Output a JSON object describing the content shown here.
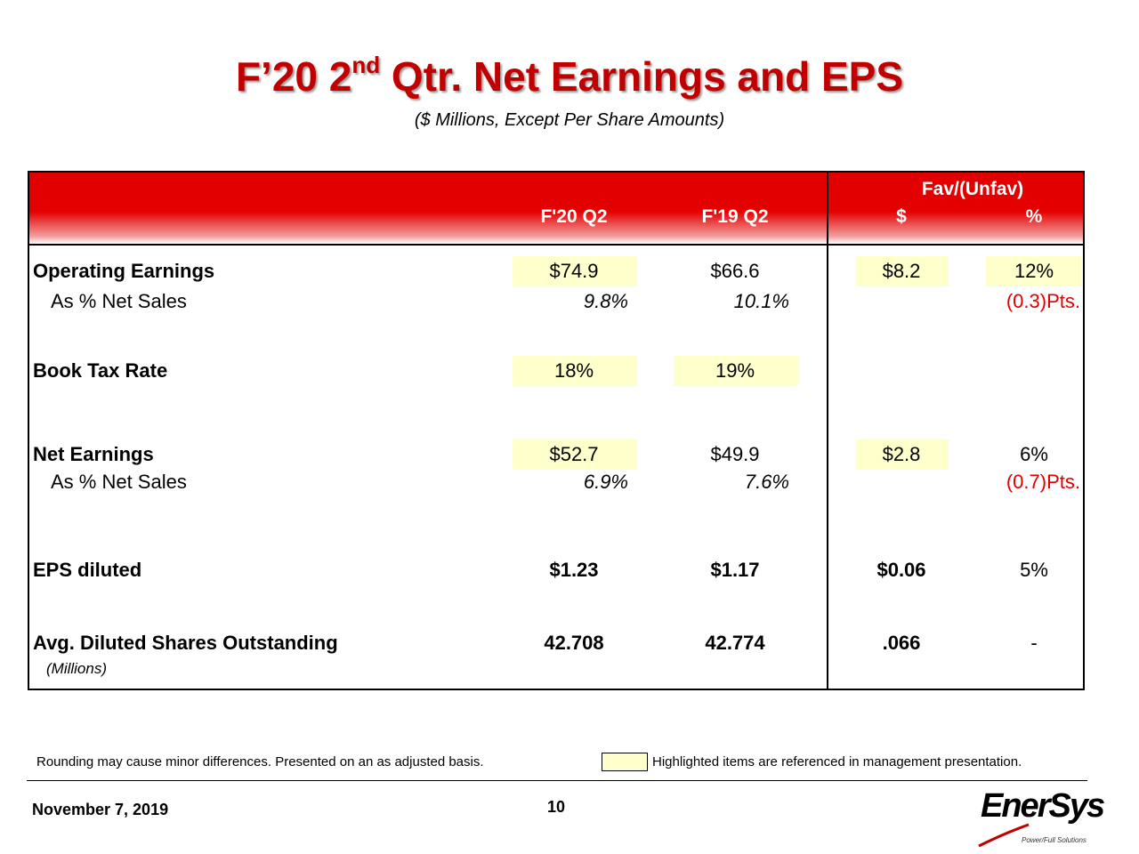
{
  "header": {
    "title_parts": [
      "F’20 2",
      "nd",
      " Qtr. Net Earnings and EPS"
    ],
    "subtitle": "($ Millions, Except Per Share Amounts)"
  },
  "table": {
    "group_header": "Fav/(Unfav)",
    "columns": [
      "F'20 Q2",
      "F'19 Q2",
      "$",
      "%"
    ],
    "rows": [
      {
        "label": "Operating Earnings",
        "cells": [
          "$74.9",
          "$66.6",
          "$8.2",
          "12%"
        ],
        "highlight": [
          true,
          false,
          true,
          true
        ]
      },
      {
        "label": "As % Net Sales",
        "cells": [
          "9.8%",
          "10.1%",
          null,
          "(0.3)Pts."
        ],
        "highlight": [
          false,
          false,
          false,
          false
        ]
      },
      {
        "label": "Book Tax Rate",
        "cells": [
          "18%",
          "19%",
          null,
          null
        ],
        "highlight": [
          true,
          true,
          false,
          false
        ]
      },
      {
        "label": "Net Earnings",
        "cells": [
          "$52.7",
          "$49.9",
          "$2.8",
          "6%"
        ],
        "highlight": [
          true,
          false,
          true,
          false
        ]
      },
      {
        "label": "As % Net Sales",
        "cells": [
          "6.9%",
          "7.6%",
          null,
          "(0.7)Pts."
        ],
        "highlight": [
          false,
          false,
          false,
          false
        ]
      },
      {
        "label": "EPS diluted",
        "cells": [
          "$1.23",
          "$1.17",
          "$0.06",
          "5%"
        ],
        "highlight": [
          false,
          false,
          false,
          false
        ]
      },
      {
        "label": "Avg. Diluted Shares Outstanding",
        "cells": [
          "42.708",
          "42.774",
          ".066",
          "-"
        ],
        "highlight": [
          false,
          false,
          false,
          false
        ]
      },
      {
        "label": "(Millions)",
        "cells": [
          null,
          null,
          null,
          null
        ],
        "highlight": [
          false,
          false,
          false,
          false
        ]
      }
    ]
  },
  "footer": {
    "note": "Rounding may cause minor differences.  Presented on an as adjusted basis.",
    "legend": "Highlighted items are referenced in management presentation.",
    "date": "November 7, 2019",
    "page": "10",
    "logo": "EnerSys",
    "tagline": "Power/Full Solutions"
  }
}
